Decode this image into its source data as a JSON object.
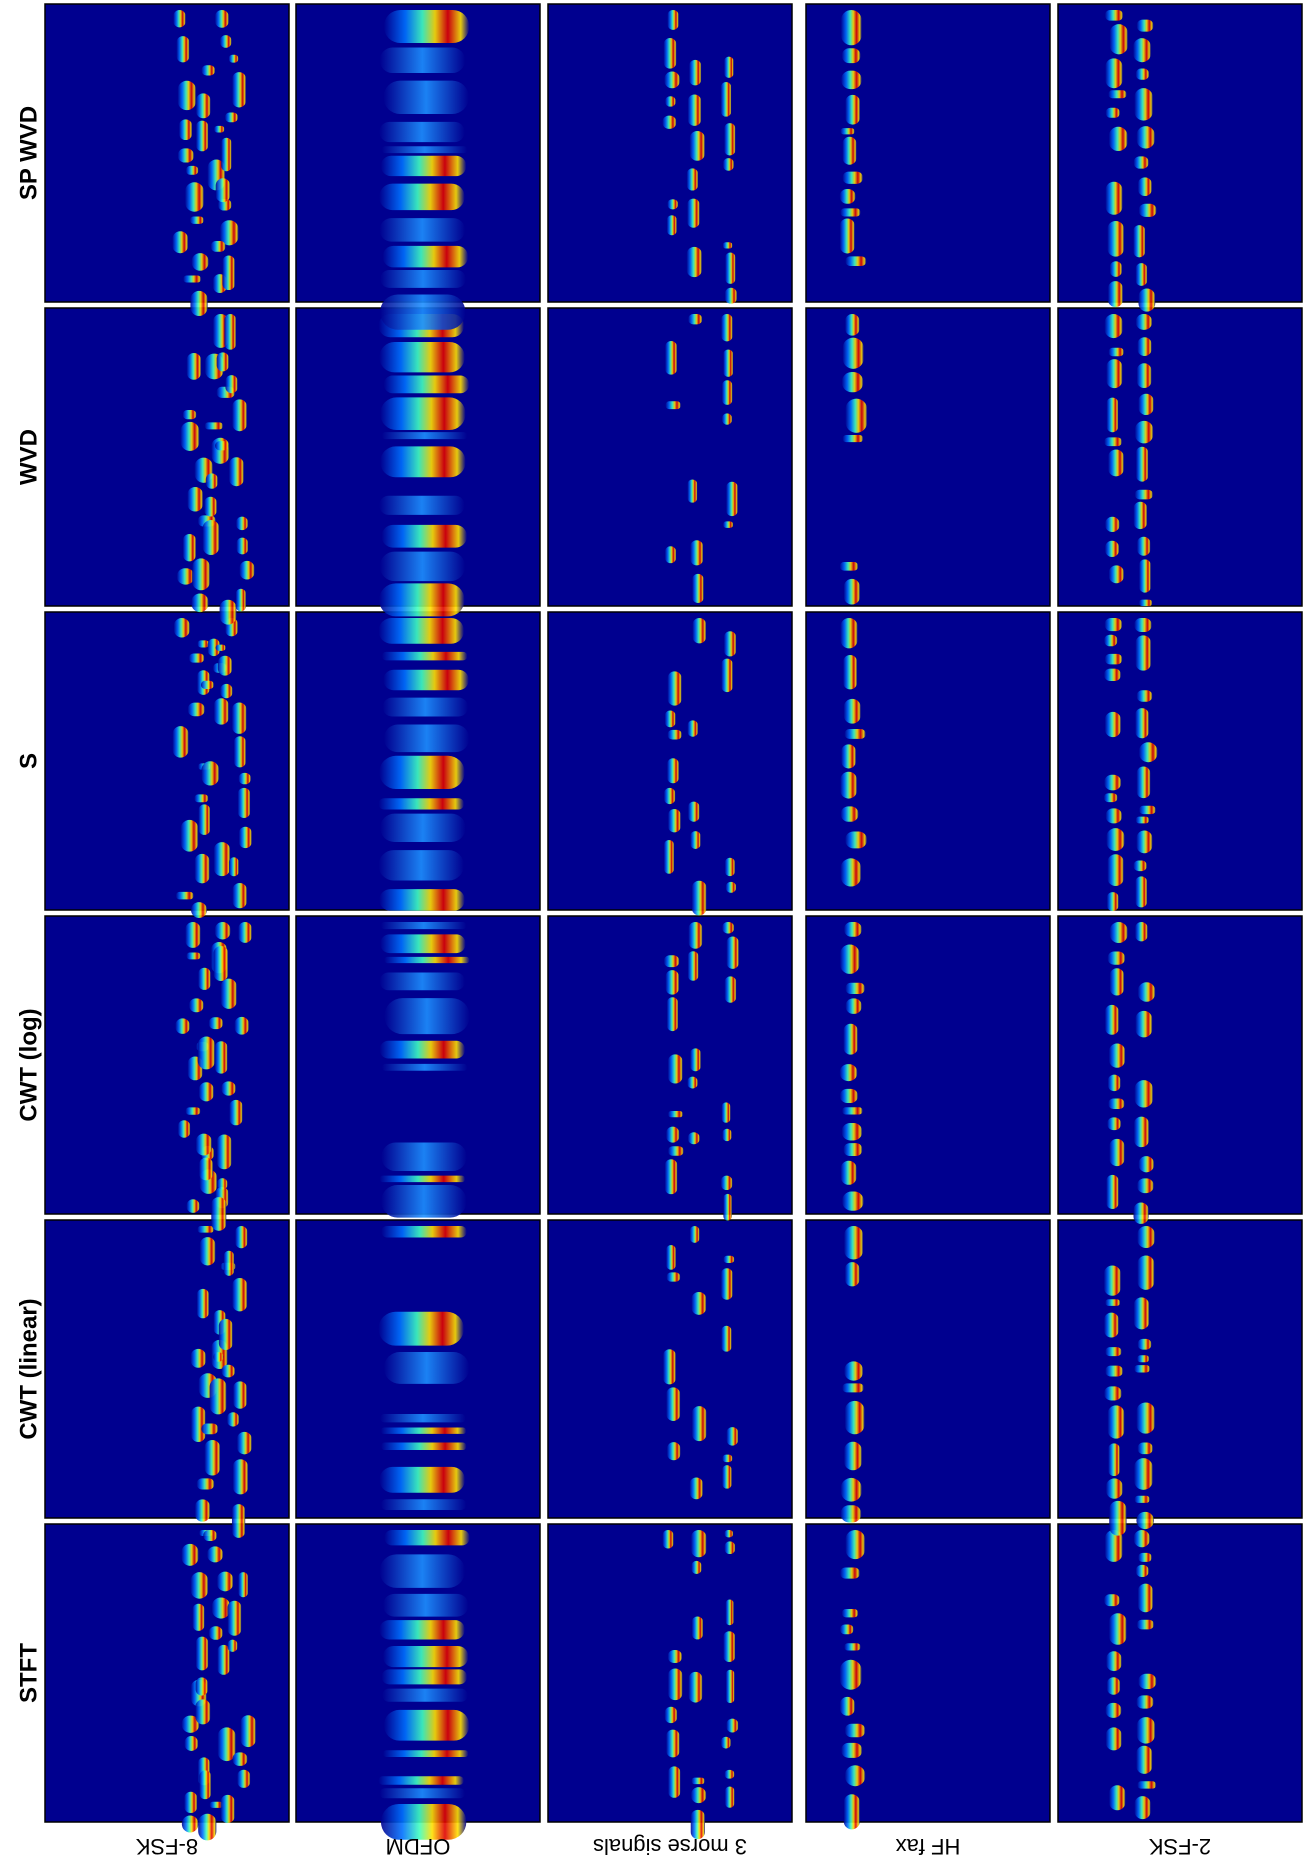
{
  "methods": [
    "STFT",
    "CWT (linear)",
    "CWT (log)",
    "S",
    "WVD",
    "SP WVD"
  ],
  "signals": [
    "8-FSK",
    "OFDM",
    "3 morse signals",
    "HF fax",
    "2-FSK"
  ]
}
